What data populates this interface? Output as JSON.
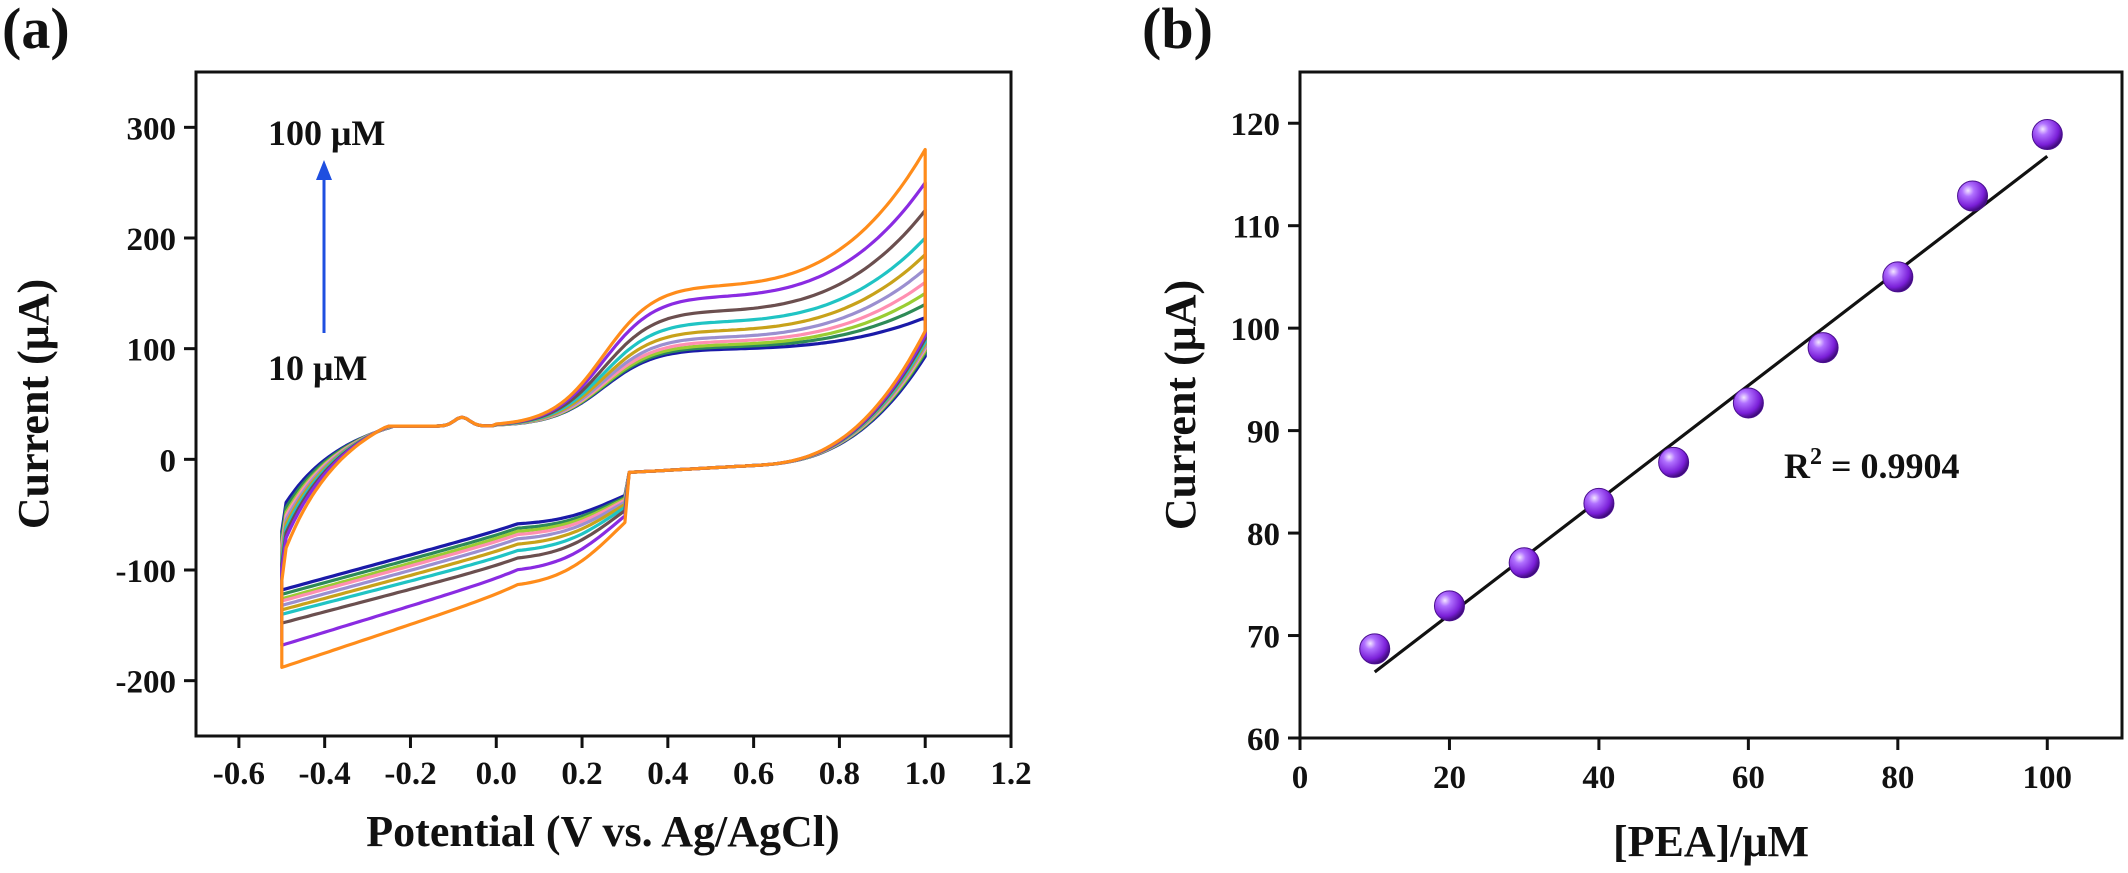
{
  "panel_a": {
    "label": "(a)",
    "annotation_top": "100 μM",
    "annotation_bottom": "10 μM",
    "arrow_color": "#1f4fe0"
  },
  "panel_b": {
    "label": "(b)",
    "r2_label": "R",
    "r2_sup": "2",
    "r2_value": " = 0.9904"
  },
  "chart_data": [
    {
      "type": "line",
      "title": "",
      "xlabel": "Potential (V vs. Ag/AgCl)",
      "ylabel": "Current (μA)",
      "xlim": [
        -0.7,
        1.2
      ],
      "ylim": [
        -250,
        350
      ],
      "xticks": [
        -0.6,
        -0.4,
        -0.2,
        0.0,
        0.2,
        0.4,
        0.6,
        0.8,
        1.0,
        1.2
      ],
      "xtick_labels": [
        "-0.6",
        "-0.4",
        "-0.2",
        "0.0",
        "0.2",
        "0.4",
        "0.6",
        "0.8",
        "1.0",
        "1.2"
      ],
      "yticks": [
        -200,
        -100,
        0,
        100,
        200,
        300
      ],
      "ytick_labels": [
        "-200",
        "-100",
        "0",
        "100",
        "200",
        "300"
      ],
      "grid": false,
      "legend": "none",
      "concentration_unit": "μM",
      "series": [
        {
          "concentration": 10,
          "color": "#1a1aa8",
          "peak_current": 70,
          "start_upper": -65,
          "end_upper": 128,
          "end_lower": 105,
          "start_lower": -118,
          "return_current": -60
        },
        {
          "concentration": 20,
          "color": "#2e8b57",
          "peak_current": 72,
          "start_upper": -70,
          "end_upper": 140,
          "end_lower": 108,
          "start_lower": -122,
          "return_current": -64
        },
        {
          "concentration": 30,
          "color": "#9acd32",
          "peak_current": 74,
          "start_upper": -75,
          "end_upper": 150,
          "end_lower": 110,
          "start_lower": -126,
          "return_current": -67
        },
        {
          "concentration": 40,
          "color": "#ff8fb1",
          "peak_current": 77,
          "start_upper": -78,
          "end_upper": 160,
          "end_lower": 112,
          "start_lower": -128,
          "return_current": -70
        },
        {
          "concentration": 50,
          "color": "#9b8fd0",
          "peak_current": 81,
          "start_upper": -82,
          "end_upper": 172,
          "end_lower": 114,
          "start_lower": -132,
          "return_current": -74
        },
        {
          "concentration": 60,
          "color": "#c8a21a",
          "peak_current": 87,
          "start_upper": -86,
          "end_upper": 185,
          "end_lower": 116,
          "start_lower": -136,
          "return_current": -79
        },
        {
          "concentration": 70,
          "color": "#20c4c4",
          "peak_current": 95,
          "start_upper": -90,
          "end_upper": 200,
          "end_lower": 118,
          "start_lower": -140,
          "return_current": -85
        },
        {
          "concentration": 80,
          "color": "#6b4f4f",
          "peak_current": 105,
          "start_upper": -95,
          "end_upper": 225,
          "end_lower": 121,
          "start_lower": -148,
          "return_current": -92
        },
        {
          "concentration": 90,
          "color": "#8a2be2",
          "peak_current": 118,
          "start_upper": -100,
          "end_upper": 250,
          "end_lower": 124,
          "start_lower": -168,
          "return_current": -103
        },
        {
          "concentration": 100,
          "color": "#ff8c1a",
          "peak_current": 128,
          "start_upper": -110,
          "end_upper": 280,
          "end_lower": 128,
          "start_lower": -188,
          "return_current": -117
        }
      ]
    },
    {
      "type": "scatter",
      "title": "",
      "xlabel": "[PEA]/μM",
      "ylabel": "Current (μA)",
      "xlim": [
        0,
        110
      ],
      "ylim": [
        60,
        125
      ],
      "xticks": [
        0,
        20,
        40,
        60,
        80,
        100
      ],
      "xtick_labels": [
        "0",
        "20",
        "40",
        "60",
        "80",
        "100"
      ],
      "yticks": [
        60,
        70,
        80,
        90,
        100,
        110,
        120
      ],
      "ytick_labels": [
        "60",
        "70",
        "80",
        "90",
        "100",
        "110",
        "120"
      ],
      "grid": false,
      "legend": "none",
      "marker_color": "#8a2be2",
      "x": [
        10,
        20,
        30,
        40,
        50,
        60,
        70,
        80,
        90,
        100
      ],
      "y": [
        68.7,
        72.9,
        77.1,
        82.9,
        86.9,
        92.7,
        98.1,
        105.0,
        112.9,
        118.9
      ],
      "fit": {
        "type": "linear",
        "x_range": [
          10,
          100
        ],
        "color": "#111111",
        "r_squared": 0.9904
      }
    }
  ]
}
